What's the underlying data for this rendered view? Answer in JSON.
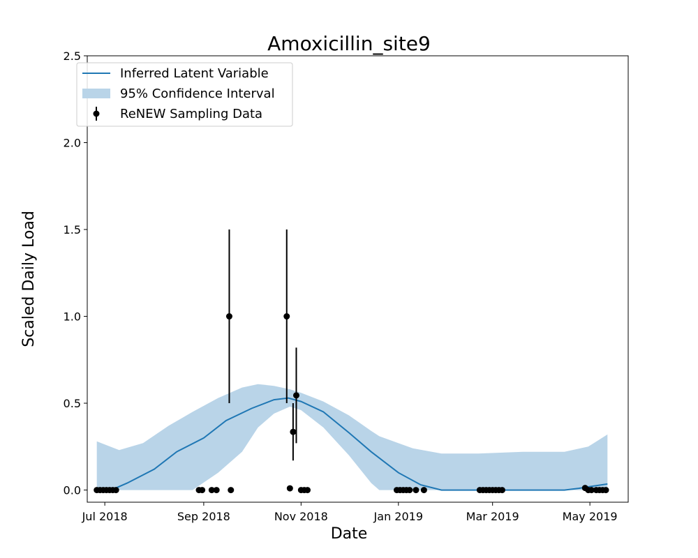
{
  "chart_data": {
    "type": "line",
    "title": "Amoxicillin_site9",
    "xlabel": "Date",
    "ylabel": "Scaled Daily Load",
    "xlim": [
      "2018-06-20",
      "2019-05-25"
    ],
    "ylim": [
      -0.07,
      2.5
    ],
    "x_ticks": [
      {
        "date": "2018-07-01",
        "label": "Jul 2018"
      },
      {
        "date": "2018-09-01",
        "label": "Sep 2018"
      },
      {
        "date": "2018-11-01",
        "label": "Nov 2018"
      },
      {
        "date": "2019-01-01",
        "label": "Jan 2019"
      },
      {
        "date": "2019-03-01",
        "label": "Mar 2019"
      },
      {
        "date": "2019-05-01",
        "label": "May 2019"
      }
    ],
    "y_ticks": [
      0.0,
      0.5,
      1.0,
      1.5,
      2.0,
      2.5
    ],
    "y_tick_labels": [
      "0.0",
      "0.5",
      "1.0",
      "1.5",
      "2.0",
      "2.5"
    ],
    "legend": {
      "position": "upper-left",
      "entries": [
        "Inferred Latent Variable",
        "95% Confidence Interval",
        "ReNEW Sampling Data"
      ]
    },
    "colors": {
      "line": "#1f77b4",
      "band": "#b9d4e8",
      "points": "#000000"
    },
    "series": [
      {
        "name": "Inferred Latent Variable",
        "kind": "line",
        "points": [
          {
            "x": "2018-06-26",
            "y": 0.0
          },
          {
            "x": "2018-07-05",
            "y": 0.0
          },
          {
            "x": "2018-07-15",
            "y": 0.04
          },
          {
            "x": "2018-08-01",
            "y": 0.12
          },
          {
            "x": "2018-08-15",
            "y": 0.22
          },
          {
            "x": "2018-09-01",
            "y": 0.3
          },
          {
            "x": "2018-09-15",
            "y": 0.4
          },
          {
            "x": "2018-10-01",
            "y": 0.47
          },
          {
            "x": "2018-10-15",
            "y": 0.52
          },
          {
            "x": "2018-10-24",
            "y": 0.53
          },
          {
            "x": "2018-11-01",
            "y": 0.51
          },
          {
            "x": "2018-11-15",
            "y": 0.45
          },
          {
            "x": "2018-12-01",
            "y": 0.33
          },
          {
            "x": "2018-12-15",
            "y": 0.22
          },
          {
            "x": "2019-01-01",
            "y": 0.1
          },
          {
            "x": "2019-01-15",
            "y": 0.03
          },
          {
            "x": "2019-01-28",
            "y": 0.0
          },
          {
            "x": "2019-04-15",
            "y": 0.0
          },
          {
            "x": "2019-04-24",
            "y": 0.01
          },
          {
            "x": "2019-05-01",
            "y": 0.02
          },
          {
            "x": "2019-05-12",
            "y": 0.035
          }
        ]
      },
      {
        "name": "95% Confidence Interval",
        "kind": "band",
        "points": [
          {
            "x": "2018-06-26",
            "lower": 0.0,
            "upper": 0.28
          },
          {
            "x": "2018-07-10",
            "lower": 0.0,
            "upper": 0.23
          },
          {
            "x": "2018-07-25",
            "lower": 0.0,
            "upper": 0.27
          },
          {
            "x": "2018-08-10",
            "lower": 0.0,
            "upper": 0.37
          },
          {
            "x": "2018-08-25",
            "lower": 0.0,
            "upper": 0.45
          },
          {
            "x": "2018-09-10",
            "lower": 0.1,
            "upper": 0.53
          },
          {
            "x": "2018-09-25",
            "lower": 0.22,
            "upper": 0.59
          },
          {
            "x": "2018-10-05",
            "lower": 0.36,
            "upper": 0.61
          },
          {
            "x": "2018-10-15",
            "lower": 0.44,
            "upper": 0.6
          },
          {
            "x": "2018-10-25",
            "lower": 0.48,
            "upper": 0.58
          },
          {
            "x": "2018-11-01",
            "lower": 0.46,
            "upper": 0.56
          },
          {
            "x": "2018-11-15",
            "lower": 0.36,
            "upper": 0.51
          },
          {
            "x": "2018-12-01",
            "lower": 0.2,
            "upper": 0.43
          },
          {
            "x": "2018-12-15",
            "lower": 0.04,
            "upper": 0.34
          },
          {
            "x": "2018-12-20",
            "lower": 0.0,
            "upper": 0.31
          },
          {
            "x": "2019-01-10",
            "lower": 0.0,
            "upper": 0.24
          },
          {
            "x": "2019-01-28",
            "lower": 0.0,
            "upper": 0.21
          },
          {
            "x": "2019-02-20",
            "lower": 0.0,
            "upper": 0.21
          },
          {
            "x": "2019-03-20",
            "lower": 0.0,
            "upper": 0.22
          },
          {
            "x": "2019-04-15",
            "lower": 0.0,
            "upper": 0.22
          },
          {
            "x": "2019-04-30",
            "lower": 0.0,
            "upper": 0.25
          },
          {
            "x": "2019-05-12",
            "lower": 0.0,
            "upper": 0.32
          }
        ]
      },
      {
        "name": "ReNEW Sampling Data",
        "kind": "errorbar",
        "points": [
          {
            "x": "2018-06-26",
            "y": 0.0
          },
          {
            "x": "2018-06-28",
            "y": 0.0
          },
          {
            "x": "2018-06-30",
            "y": 0.0
          },
          {
            "x": "2018-07-02",
            "y": 0.0
          },
          {
            "x": "2018-07-04",
            "y": 0.0
          },
          {
            "x": "2018-07-06",
            "y": 0.0
          },
          {
            "x": "2018-07-08",
            "y": 0.0
          },
          {
            "x": "2018-08-29",
            "y": 0.0
          },
          {
            "x": "2018-08-31",
            "y": 0.0
          },
          {
            "x": "2018-09-06",
            "y": 0.0
          },
          {
            "x": "2018-09-09",
            "y": 0.0
          },
          {
            "x": "2018-09-17",
            "y": 1.0,
            "yerr_low": 0.5,
            "yerr_high": 1.5
          },
          {
            "x": "2018-09-18",
            "y": 0.0
          },
          {
            "x": "2018-10-23",
            "y": 1.0,
            "yerr_low": 0.5,
            "yerr_high": 1.5
          },
          {
            "x": "2018-10-25",
            "y": 0.01
          },
          {
            "x": "2018-10-27",
            "y": 0.335,
            "yerr_low": 0.17,
            "yerr_high": 0.5
          },
          {
            "x": "2018-10-29",
            "y": 0.545,
            "yerr_low": 0.27,
            "yerr_high": 0.82
          },
          {
            "x": "2018-11-01",
            "y": 0.0
          },
          {
            "x": "2018-11-03",
            "y": 0.0
          },
          {
            "x": "2018-11-05",
            "y": 0.0
          },
          {
            "x": "2018-12-31",
            "y": 0.0
          },
          {
            "x": "2019-01-02",
            "y": 0.0
          },
          {
            "x": "2019-01-04",
            "y": 0.0
          },
          {
            "x": "2019-01-06",
            "y": 0.0
          },
          {
            "x": "2019-01-08",
            "y": 0.0
          },
          {
            "x": "2019-01-12",
            "y": 0.0
          },
          {
            "x": "2019-01-17",
            "y": 0.0
          },
          {
            "x": "2019-02-21",
            "y": 0.0
          },
          {
            "x": "2019-02-23",
            "y": 0.0
          },
          {
            "x": "2019-02-25",
            "y": 0.0
          },
          {
            "x": "2019-02-27",
            "y": 0.0
          },
          {
            "x": "2019-03-01",
            "y": 0.0
          },
          {
            "x": "2019-03-03",
            "y": 0.0
          },
          {
            "x": "2019-03-05",
            "y": 0.0
          },
          {
            "x": "2019-03-07",
            "y": 0.0
          },
          {
            "x": "2019-04-28",
            "y": 0.012
          },
          {
            "x": "2019-04-30",
            "y": 0.0
          },
          {
            "x": "2019-05-02",
            "y": 0.0
          },
          {
            "x": "2019-05-05",
            "y": 0.0
          },
          {
            "x": "2019-05-07",
            "y": 0.0
          },
          {
            "x": "2019-05-09",
            "y": 0.0
          },
          {
            "x": "2019-05-11",
            "y": 0.0
          }
        ]
      }
    ]
  }
}
